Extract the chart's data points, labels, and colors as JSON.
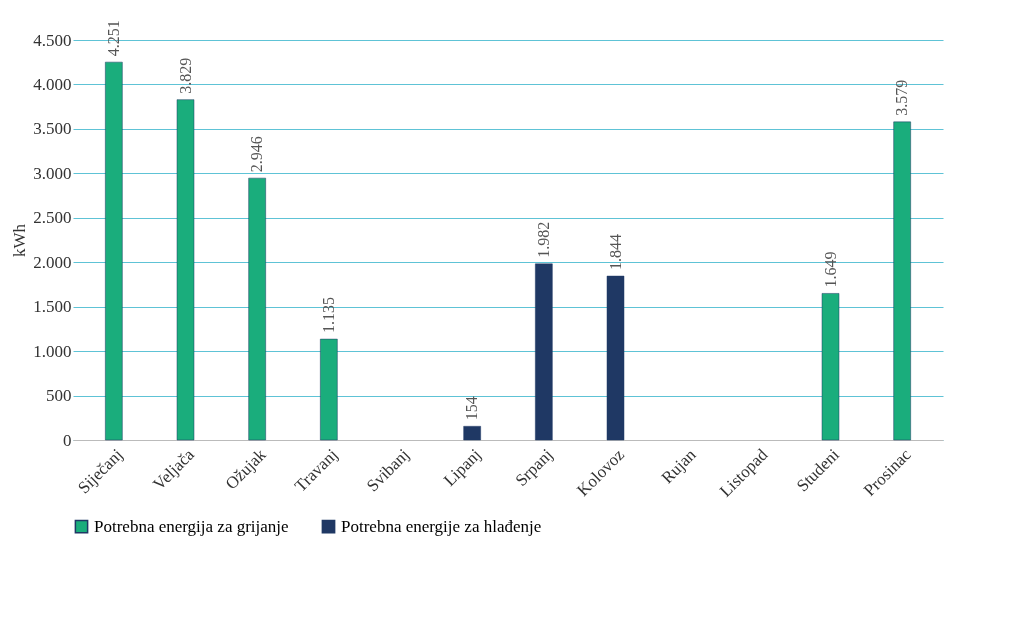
{
  "chart_data": {
    "type": "bar",
    "ylabel": "kWh",
    "categories": [
      "Siječanj",
      "Veljača",
      "Ožujak",
      "Travanj",
      "Svibanj",
      "Lipanj",
      "Srpanj",
      "Kolovoz",
      "Rujan",
      "Listopad",
      "Studeni",
      "Prosinac"
    ],
    "series": [
      {
        "name": "Potrebna energija za grijanje",
        "color": "#1aad7c",
        "values": [
          4251,
          3829,
          2946,
          1135,
          null,
          null,
          null,
          null,
          null,
          null,
          1649,
          3579
        ],
        "value_labels": [
          "4.251",
          "3.829",
          "2.946",
          "1.135",
          null,
          null,
          null,
          null,
          null,
          null,
          "1.649",
          "3.579"
        ]
      },
      {
        "name": "Potrebna energije za hlađenje",
        "color": "#1f3864",
        "values": [
          null,
          null,
          null,
          null,
          null,
          154,
          1982,
          1844,
          null,
          null,
          null,
          null
        ],
        "value_labels": [
          null,
          null,
          null,
          null,
          null,
          "154",
          "1.982",
          "1.844",
          null,
          null,
          null,
          null
        ]
      }
    ],
    "ylim": [
      0,
      4500
    ],
    "yticks": [
      {
        "value": 0,
        "label": "0"
      },
      {
        "value": 500,
        "label": "500"
      },
      {
        "value": 1000,
        "label": "1.000"
      },
      {
        "value": 1500,
        "label": "1.500"
      },
      {
        "value": 2000,
        "label": "2.000"
      },
      {
        "value": 2500,
        "label": "2.500"
      },
      {
        "value": 3000,
        "label": "3.000"
      },
      {
        "value": 3500,
        "label": "3.500"
      },
      {
        "value": 4000,
        "label": "4.000"
      },
      {
        "value": 4500,
        "label": "4.500"
      }
    ],
    "grid": "y",
    "legend": "bottom"
  }
}
